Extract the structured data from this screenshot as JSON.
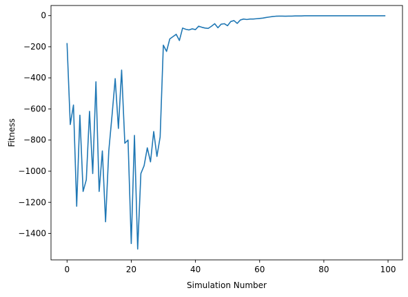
{
  "chart_data": {
    "type": "line",
    "title": "",
    "xlabel": "Simulation Number",
    "ylabel": "Fitness",
    "xlim": [
      -5,
      104.5
    ],
    "ylim": [
      -1570,
      65
    ],
    "xticks": [
      0,
      20,
      40,
      60,
      80,
      100
    ],
    "yticks": [
      0,
      -200,
      -400,
      -600,
      -800,
      -1000,
      -1200,
      -1400
    ],
    "grid": false,
    "legend": "none",
    "series": [
      {
        "color": "#1f77b4",
        "x": [
          0,
          1,
          2,
          3,
          4,
          5,
          6,
          7,
          8,
          9,
          10,
          11,
          12,
          13,
          14,
          15,
          16,
          17,
          18,
          19,
          20,
          21,
          22,
          23,
          24,
          25,
          26,
          27,
          28,
          29,
          30,
          31,
          32,
          33,
          34,
          35,
          36,
          37,
          38,
          39,
          40,
          41,
          42,
          43,
          44,
          45,
          46,
          47,
          48,
          49,
          50,
          51,
          52,
          53,
          54,
          55,
          56,
          57,
          58,
          59,
          60,
          61,
          62,
          63,
          64,
          65,
          66,
          67,
          68,
          69,
          70,
          71,
          72,
          73,
          74,
          75,
          76,
          77,
          78,
          79,
          80,
          81,
          82,
          83,
          84,
          85,
          86,
          87,
          88,
          89,
          90,
          91,
          92,
          93,
          94,
          95,
          96,
          97,
          98,
          99
        ],
        "y": [
          -180,
          -700,
          -575,
          -1225,
          -640,
          -1130,
          -1055,
          -615,
          -1015,
          -425,
          -1130,
          -870,
          -1325,
          -870,
          -645,
          -405,
          -725,
          -350,
          -820,
          -800,
          -1465,
          -770,
          -1500,
          -1015,
          -965,
          -850,
          -940,
          -745,
          -905,
          -780,
          -190,
          -230,
          -150,
          -135,
          -120,
          -160,
          -80,
          -88,
          -92,
          -85,
          -90,
          -68,
          -75,
          -80,
          -82,
          -68,
          -52,
          -78,
          -55,
          -52,
          -65,
          -38,
          -32,
          -50,
          -28,
          -22,
          -25,
          -22,
          -22,
          -20,
          -18,
          -16,
          -12,
          -9,
          -6,
          -4,
          -3,
          -3,
          -4,
          -3,
          -3,
          -2,
          -2,
          -2,
          -1,
          -1,
          -1,
          -1,
          -1,
          -1,
          -1,
          -1,
          -1,
          -1,
          -1,
          -1,
          -1,
          -1,
          -1,
          -1,
          -1,
          -1,
          -1,
          -1,
          -1,
          -1,
          -1,
          -1,
          -1,
          -1
        ]
      }
    ]
  }
}
